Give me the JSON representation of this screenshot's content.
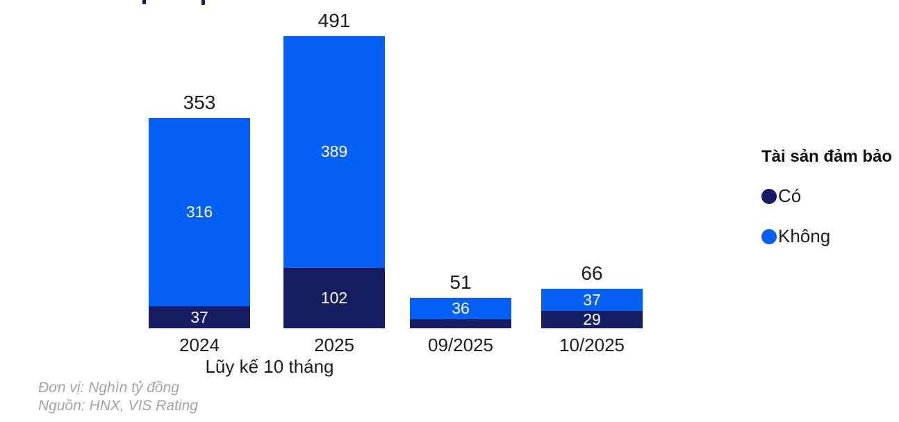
{
  "chart_data": {
    "type": "bar",
    "stacked": true,
    "categories": [
      "2024",
      "2025",
      "09/2025",
      "10/2025"
    ],
    "group_label": "Lũy kế 10 tháng",
    "series": [
      {
        "name": "Có",
        "color": "#171d63",
        "values": [
          37,
          102,
          15,
          29
        ],
        "labels": [
          "37",
          "102",
          "",
          "29"
        ]
      },
      {
        "name": "Không",
        "color": "#0560f5",
        "values": [
          316,
          389,
          36,
          37
        ],
        "labels": [
          "316",
          "389",
          "36",
          "37"
        ]
      }
    ],
    "totals": [
      "353",
      "491",
      "51",
      "66"
    ],
    "ylim": [
      0,
      491
    ],
    "grid": false,
    "legend": {
      "title": "Tài sản đảm bảo",
      "position": "right"
    },
    "unit_note": "Đơn vị: Nghìn tỷ đồng",
    "source_note": "Nguồn: HNX, VIS Rating"
  }
}
